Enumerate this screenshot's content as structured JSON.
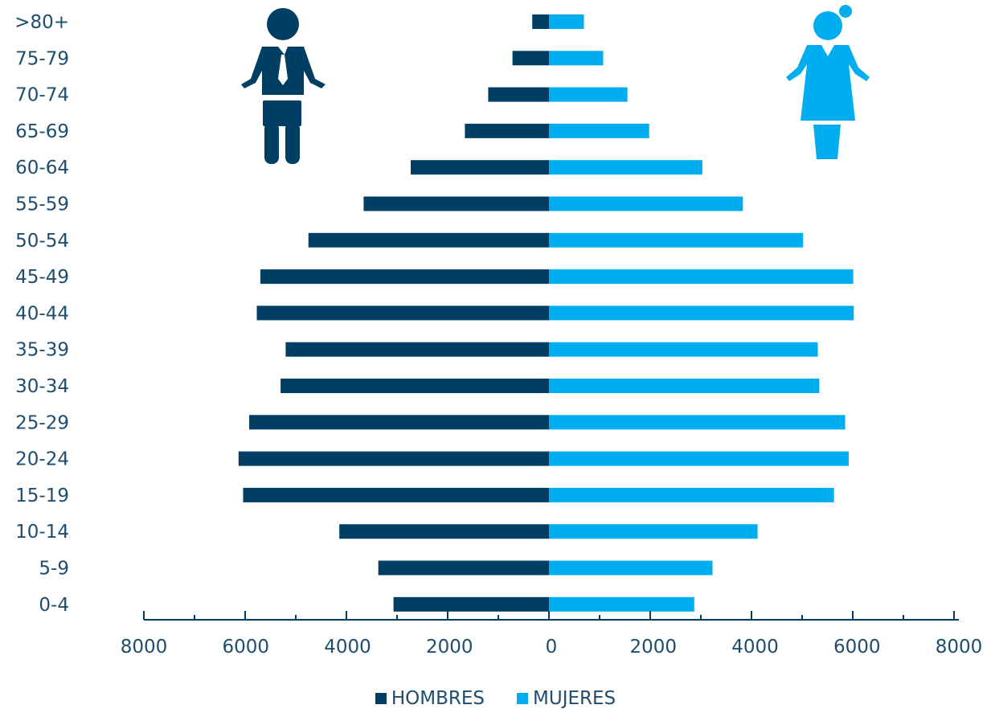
{
  "chart_data": {
    "type": "bar",
    "orientation": "horizontal",
    "layout": "population-pyramid",
    "categories": [
      ">80+",
      "75-79",
      "70-74",
      "65-69",
      "60-64",
      "55-59",
      "50-54",
      "45-49",
      "40-44",
      "35-39",
      "30-34",
      "25-29",
      "20-24",
      "15-19",
      "10-14",
      "5-9",
      "0-4"
    ],
    "series": [
      {
        "name": "HOMBRES",
        "color": "#003f63",
        "direction": "left",
        "values": [
          330,
          720,
          1200,
          1660,
          2730,
          3660,
          4750,
          5700,
          5770,
          5200,
          5300,
          5920,
          6130,
          6040,
          4140,
          3370,
          3070
        ]
      },
      {
        "name": "MUJERES",
        "color": "#00aeef",
        "direction": "right",
        "values": [
          690,
          1070,
          1550,
          1980,
          3030,
          3830,
          5020,
          6010,
          6020,
          5310,
          5340,
          5850,
          5920,
          5630,
          4120,
          3230,
          2870
        ]
      }
    ],
    "x_ticks": [
      "8000",
      "6000",
      "4000",
      "2000",
      "0",
      "2000",
      "4000",
      "6000",
      "8000"
    ],
    "xlim": [
      -8000,
      8000
    ],
    "grid": false,
    "legend_position": "bottom-center",
    "icons": [
      "man-icon",
      "woman-icon"
    ]
  }
}
